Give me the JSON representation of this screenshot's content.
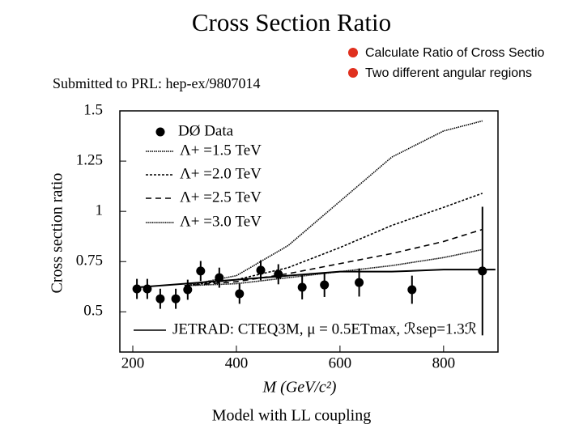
{
  "slide": {
    "title": "Cross Section Ratio",
    "subtitle": "Submitted to PRL: hep-ex/9807014",
    "bullets": [
      "Calculate Ratio of Cross Sectio",
      "Two different angular regions"
    ],
    "caption": "Model with LL coupling"
  },
  "chart_data": {
    "type": "scatter",
    "x_label": "M (GeV/c²)",
    "y_label": "Cross section ratio",
    "xlim": [
      175,
      905
    ],
    "ylim": [
      0.3,
      1.5
    ],
    "xticks": [
      200,
      400,
      600,
      800
    ],
    "yticks": [
      0.5,
      0.75,
      1,
      1.25,
      1.5
    ],
    "series": [
      {
        "name": "DØ Data",
        "type": "scatter",
        "color": "#000000",
        "x": [
          208,
          228,
          253,
          283,
          306,
          331,
          367,
          406,
          447,
          481,
          527,
          570,
          637,
          739,
          875
        ],
        "values": [
          0.614,
          0.614,
          0.565,
          0.565,
          0.61,
          0.703,
          0.67,
          0.59,
          0.707,
          0.687,
          0.622,
          0.634,
          0.646,
          0.61,
          0.703
        ],
        "errors": [
          0.05,
          0.05,
          0.05,
          0.05,
          0.05,
          0.05,
          0.05,
          0.05,
          0.05,
          0.05,
          0.06,
          0.06,
          0.07,
          0.07,
          0.32
        ]
      },
      {
        "name": "Λ+ =1.5 TeV",
        "type": "line",
        "line_style": "dotted",
        "color": "#000000",
        "x": [
          300,
          400,
          500,
          600,
          700,
          800,
          875
        ],
        "values": [
          0.63,
          0.68,
          0.83,
          1.05,
          1.27,
          1.4,
          1.45
        ]
      },
      {
        "name": "Λ+ =2.0 TeV",
        "type": "line",
        "line_style": "fine-dashed",
        "color": "#000000",
        "x": [
          300,
          400,
          500,
          600,
          700,
          800,
          875
        ],
        "values": [
          0.63,
          0.66,
          0.72,
          0.82,
          0.93,
          1.02,
          1.09
        ]
      },
      {
        "name": "Λ+ =2.5 TeV",
        "type": "line",
        "line_style": "dashed",
        "color": "#000000",
        "x": [
          300,
          400,
          500,
          600,
          700,
          800,
          875
        ],
        "values": [
          0.63,
          0.65,
          0.69,
          0.74,
          0.79,
          0.85,
          0.91
        ]
      },
      {
        "name": "Λ+ =3.0 TeV",
        "type": "line",
        "line_style": "dense-dotted",
        "color": "#000000",
        "x": [
          300,
          400,
          500,
          600,
          700,
          800,
          875
        ],
        "values": [
          0.63,
          0.64,
          0.67,
          0.7,
          0.73,
          0.77,
          0.81
        ]
      },
      {
        "name": "JETRAD: CTEQ3M, μ = 0.5ETmax, ℛsep=1.3ℛ",
        "type": "line",
        "line_style": "solid",
        "color": "#000000",
        "x": [
          200,
          300,
          400,
          500,
          600,
          700,
          800,
          900
        ],
        "values": [
          0.62,
          0.64,
          0.66,
          0.68,
          0.7,
          0.7,
          0.71,
          0.71
        ]
      }
    ]
  }
}
